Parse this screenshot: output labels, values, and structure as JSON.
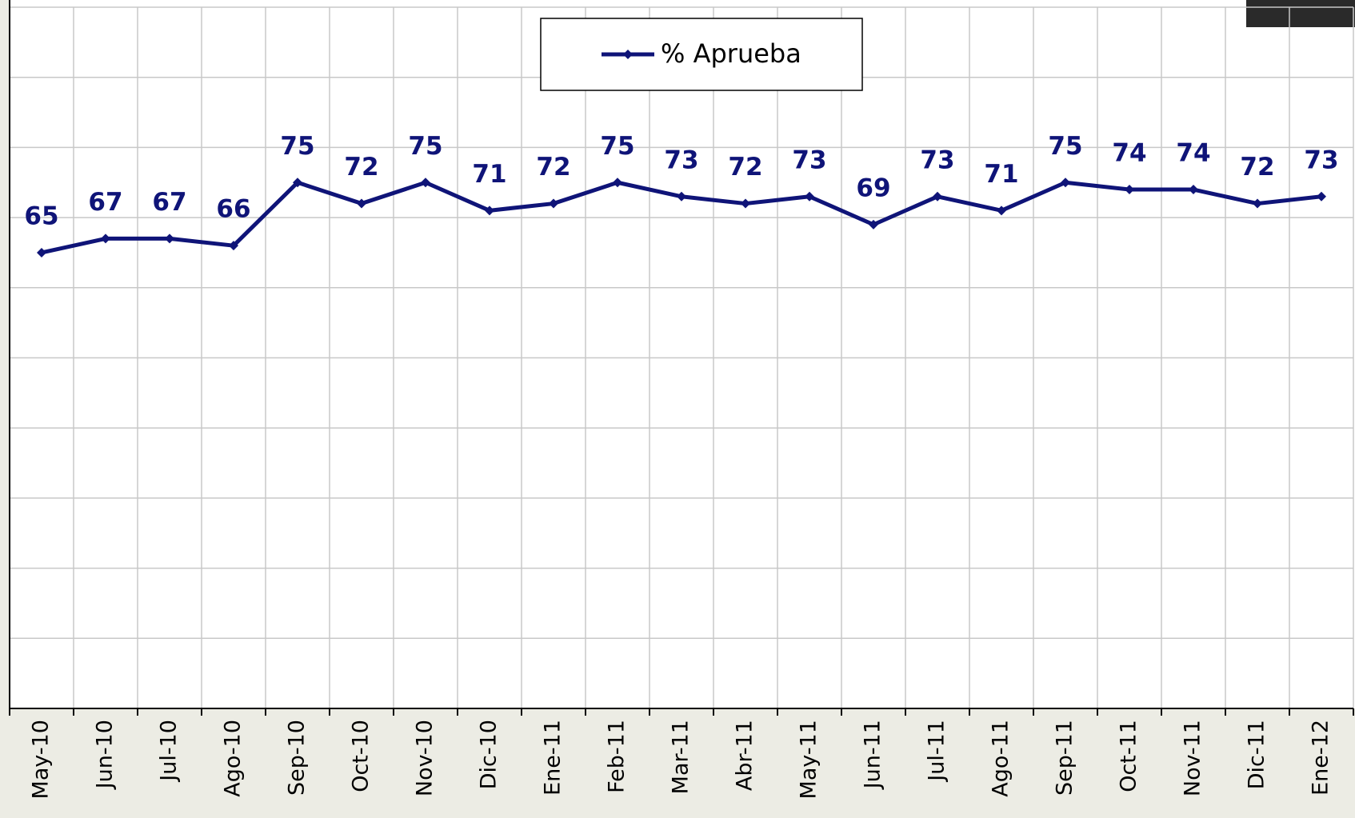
{
  "chart_data": {
    "type": "line",
    "categories": [
      "May-10",
      "Jun-10",
      "Jul-10",
      "Ago-10",
      "Sep-10",
      "Oct-10",
      "Nov-10",
      "Dic-10",
      "Ene-11",
      "Feb-11",
      "Mar-11",
      "Abr-11",
      "May-11",
      "Jun-11",
      "Jul-11",
      "Ago-11",
      "Sep-11",
      "Oct-11",
      "Nov-11",
      "Dic-11",
      "Ene-12"
    ],
    "series": [
      {
        "name": "% Aprueba",
        "color": "#0f1478",
        "values": [
          65,
          67,
          67,
          66,
          75,
          72,
          75,
          71,
          72,
          75,
          73,
          72,
          73,
          69,
          73,
          71,
          75,
          74,
          74,
          72,
          73
        ]
      }
    ],
    "ylim": [
      0,
      100
    ],
    "yticks": [
      0,
      10,
      20,
      30,
      40,
      50,
      60,
      70,
      80,
      90,
      100
    ],
    "grid": true
  }
}
